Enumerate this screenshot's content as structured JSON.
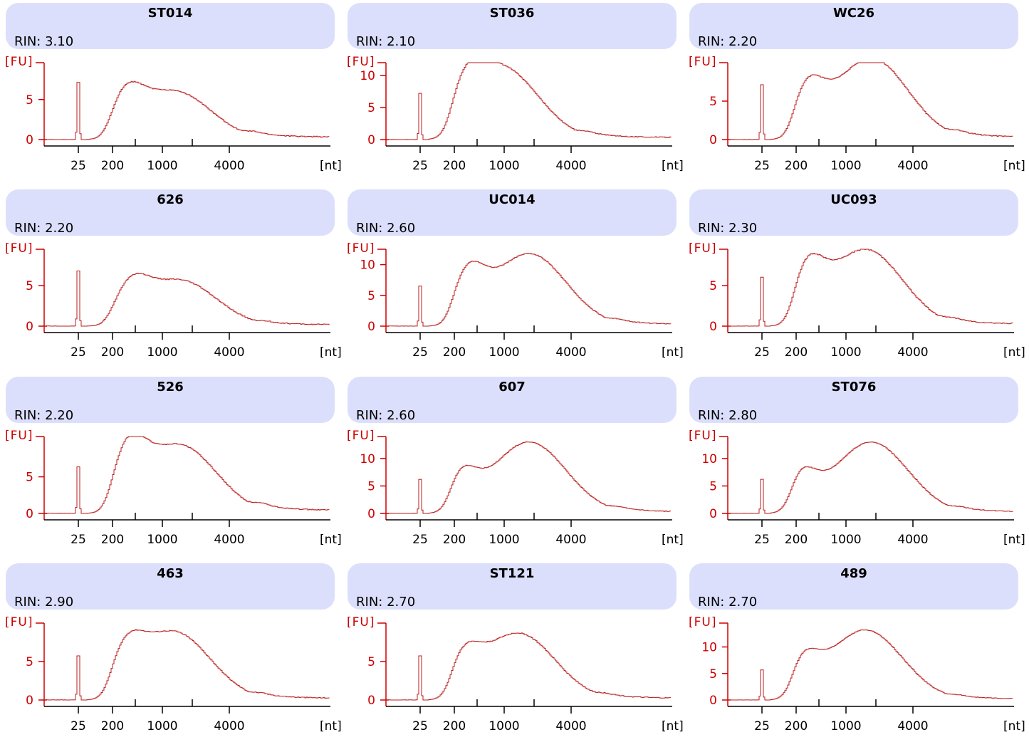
{
  "axis_units": {
    "y": "[FU]",
    "x": "[nt]"
  },
  "rin_prefix": "RIN:",
  "colors": {
    "header_bg": "#dcdffc",
    "trace": "#b81c1c",
    "y_axis": "#cc0000"
  },
  "chart_data": [
    {
      "type": "line",
      "title": "ST014",
      "rin": "3.10",
      "yticks": [
        0,
        5
      ],
      "ylim": [
        0,
        9.6
      ],
      "xticks": [
        "25",
        "200",
        "1000",
        "4000"
      ],
      "marker_peak": 9.2,
      "shoulder": 4.4,
      "shoulder_pos": 0.28,
      "main_peak": 6.1,
      "main_pos": 0.45,
      "tail": 0.6
    },
    {
      "type": "line",
      "title": "ST036",
      "rin": "2.10",
      "yticks": [
        0,
        5,
        10
      ],
      "ylim": [
        0,
        12
      ],
      "xticks": [
        "25",
        "200",
        "1000",
        "4000"
      ],
      "marker_peak": 9.3,
      "shoulder": 4.8,
      "shoulder_pos": 0.27,
      "main_peak": 11.4,
      "main_pos": 0.4,
      "tail": 0.6
    },
    {
      "type": "line",
      "title": "WC26",
      "rin": "2.20",
      "yticks": [
        0,
        5
      ],
      "ylim": [
        0,
        10
      ],
      "xticks": [
        "25",
        "200",
        "1000",
        "4000"
      ],
      "marker_peak": 9.2,
      "shoulder": 6.0,
      "shoulder_pos": 0.27,
      "main_peak": 10.6,
      "main_pos": 0.5,
      "tail": 0.6
    },
    {
      "type": "line",
      "title": "626",
      "rin": "2.20",
      "yticks": [
        0,
        5
      ],
      "ylim": [
        0,
        9.5
      ],
      "xticks": [
        "25",
        "200",
        "1000",
        "4000"
      ],
      "marker_peak": 8.8,
      "shoulder": 3.8,
      "shoulder_pos": 0.3,
      "main_peak": 5.7,
      "main_pos": 0.47,
      "tail": 0.3
    },
    {
      "type": "line",
      "title": "UC014",
      "rin": "2.60",
      "yticks": [
        0,
        5,
        10
      ],
      "ylim": [
        0,
        12.5
      ],
      "xticks": [
        "25",
        "200",
        "1000",
        "4000"
      ],
      "marker_peak": 8.4,
      "shoulder": 7.5,
      "shoulder_pos": 0.28,
      "main_peak": 11.8,
      "main_pos": 0.5,
      "tail": 0.5
    },
    {
      "type": "line",
      "title": "UC093",
      "rin": "2.30",
      "yticks": [
        0,
        5
      ],
      "ylim": [
        0,
        9.5
      ],
      "xticks": [
        "25",
        "200",
        "1000",
        "4000"
      ],
      "marker_peak": 7.8,
      "shoulder": 6.2,
      "shoulder_pos": 0.27,
      "main_peak": 9.5,
      "main_pos": 0.48,
      "tail": 0.5
    },
    {
      "type": "line",
      "title": "526",
      "rin": "2.20",
      "yticks": [
        0,
        5
      ],
      "ylim": [
        0,
        10.5
      ],
      "xticks": [
        "25",
        "200",
        "1000",
        "4000"
      ],
      "marker_peak": 8.2,
      "shoulder": 7.1,
      "shoulder_pos": 0.29,
      "main_peak": 9.4,
      "main_pos": 0.47,
      "tail": 0.8
    },
    {
      "type": "line",
      "title": "607",
      "rin": "2.60",
      "yticks": [
        0,
        5,
        10
      ],
      "ylim": [
        0,
        14
      ],
      "xticks": [
        "25",
        "200",
        "1000",
        "4000"
      ],
      "marker_peak": 8.0,
      "shoulder": 6.8,
      "shoulder_pos": 0.25,
      "main_peak": 13.0,
      "main_pos": 0.5,
      "tail": 0.5
    },
    {
      "type": "line",
      "title": "ST076",
      "rin": "2.80",
      "yticks": [
        0,
        5,
        10
      ],
      "ylim": [
        0,
        14
      ],
      "xticks": [
        "25",
        "200",
        "1000",
        "4000"
      ],
      "marker_peak": 8.0,
      "shoulder": 7.2,
      "shoulder_pos": 0.24,
      "main_peak": 13.0,
      "main_pos": 0.5,
      "tail": 0.5
    },
    {
      "type": "line",
      "title": "463",
      "rin": "2.90",
      "yticks": [
        0,
        5
      ],
      "ylim": [
        0,
        10
      ],
      "xticks": [
        "25",
        "200",
        "1000",
        "4000"
      ],
      "marker_peak": 7.4,
      "shoulder": 4.7,
      "shoulder_pos": 0.28,
      "main_peak": 8.9,
      "main_pos": 0.45,
      "tail": 0.4
    },
    {
      "type": "line",
      "title": "ST121",
      "rin": "2.70",
      "yticks": [
        0,
        5
      ],
      "ylim": [
        0,
        10
      ],
      "xticks": [
        "25",
        "200",
        "1000",
        "4000"
      ],
      "marker_peak": 7.4,
      "shoulder": 4.6,
      "shoulder_pos": 0.26,
      "main_peak": 8.7,
      "main_pos": 0.46,
      "tail": 0.4
    },
    {
      "type": "line",
      "title": "489",
      "rin": "2.70",
      "yticks": [
        0,
        5,
        10
      ],
      "ylim": [
        0,
        14.5
      ],
      "xticks": [
        "25",
        "200",
        "1000",
        "4000"
      ],
      "marker_peak": 7.3,
      "shoulder": 6.8,
      "shoulder_pos": 0.25,
      "main_peak": 13.2,
      "main_pos": 0.48,
      "tail": 0.3
    }
  ]
}
